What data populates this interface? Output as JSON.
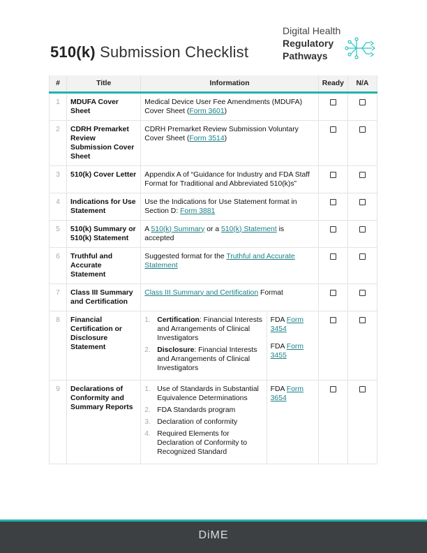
{
  "title_bold": "510(k)",
  "title_rest": " Submission Checklist",
  "logo": {
    "line1": "Digital Health",
    "line2": "Regulatory",
    "line3": "Pathways"
  },
  "headers": [
    "#",
    "Title",
    "Information",
    "Ready",
    "N/A"
  ],
  "rows": [
    {
      "num": "1",
      "title": "MDUFA Cover Sheet",
      "info_pre": "Medical Device User Fee Amendments (MDUFA) Cover Sheet (",
      "link": "Form 3601",
      "info_post": ")"
    },
    {
      "num": "2",
      "title": "CDRH Premarket Review Submission Cover Sheet",
      "info_pre": "CDRH Premarket Review Submission Voluntary Cover Sheet (",
      "link": "Form 3514",
      "info_post": ")"
    },
    {
      "num": "3",
      "title": "510(k) Cover Letter",
      "info": "Appendix A of “Guidance for Industry and FDA Staff Format for Traditional and Abbreviated 510(k)s”"
    },
    {
      "num": "4",
      "title": "Indications for Use Statement",
      "info_pre": "Use the Indications for Use Statement format in Section D: ",
      "link": "Form 3881",
      "info_post": ""
    },
    {
      "num": "5",
      "title": "510(k) Summary or 510(k) Statement",
      "info_pre": "A ",
      "link": "510(k) Summary",
      "info_mid": " or a ",
      "link2": "510(k) Statement",
      "info_post": " is accepted"
    },
    {
      "num": "6",
      "title": "Truthful and Accurate Statement",
      "info_pre": "Suggested format for the ",
      "link": "Truthful and Accurate Statement",
      "info_post": ""
    },
    {
      "num": "7",
      "title": "Class III Summary and Certification",
      "info_pre": "",
      "link": "Class III Summary and Certification",
      "info_post": " Format"
    },
    {
      "num": "8",
      "title": "Financial Certification or Disclosure Statement",
      "items": [
        {
          "n": "1.",
          "bold": "Certification",
          "text": ": Financial Interests and Arrangements of Clinical Investigators"
        },
        {
          "n": "2.",
          "bold": "Disclosure",
          "text": ": Financial Interests and Arrangements of Clinical Investigators"
        }
      ],
      "forms": [
        {
          "pre": "FDA ",
          "link": "Form 3454"
        },
        {
          "pre": "FDA ",
          "link": "Form 3455"
        }
      ]
    },
    {
      "num": "9",
      "title": "Declarations of Conformity and Summary Reports",
      "items": [
        {
          "n": "1.",
          "text": "Use of Standards in Substantial Equivalence Determinations"
        },
        {
          "n": "2.",
          "text": "FDA Standards program"
        },
        {
          "n": "3.",
          "text": "Declaration of conformity"
        },
        {
          "n": "4.",
          "text": "Required Elements for Declaration of Conformity to Recognized Standard"
        }
      ],
      "forms": [
        {
          "pre": "FDA ",
          "link": "Form 3654"
        }
      ]
    }
  ],
  "footer": "DiME",
  "colors": {
    "accent": "#1eb3ad",
    "footer_bg": "#3d4043",
    "link": "#1a7f86"
  }
}
